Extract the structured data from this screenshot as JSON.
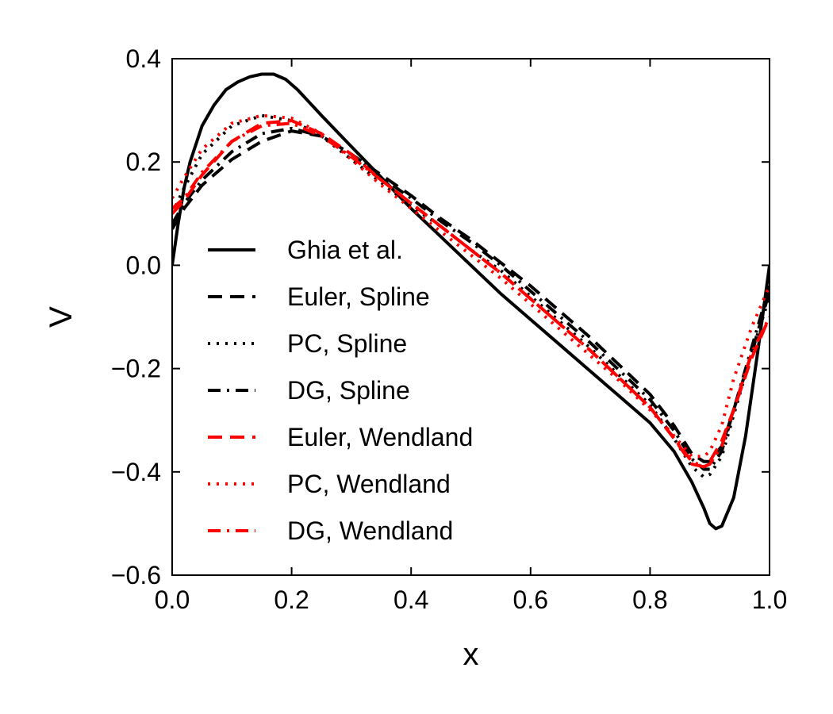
{
  "chart_data": {
    "type": "line",
    "xlabel": "x",
    "ylabel": "V",
    "xlim": [
      0.0,
      1.0
    ],
    "ylim": [
      -0.6,
      0.4
    ],
    "xticks": [
      0.0,
      0.2,
      0.4,
      0.6,
      0.8,
      1.0
    ],
    "xtick_labels": [
      "0.0",
      "0.2",
      "0.4",
      "0.6",
      "0.8",
      "1.0"
    ],
    "yticks": [
      -0.6,
      -0.4,
      -0.2,
      0.0,
      0.2,
      0.4
    ],
    "ytick_labels": [
      "−0.6",
      "−0.4",
      "−0.2",
      "0.0",
      "0.2",
      "0.4"
    ],
    "grid": false,
    "legend_position": "center-left",
    "series": [
      {
        "name": "Ghia et al.",
        "color": "#000000",
        "style": "solid",
        "x": [
          0.0,
          0.01,
          0.02,
          0.03,
          0.05,
          0.07,
          0.09,
          0.11,
          0.13,
          0.15,
          0.17,
          0.19,
          0.21,
          0.25,
          0.3,
          0.35,
          0.4,
          0.45,
          0.5,
          0.55,
          0.6,
          0.65,
          0.7,
          0.75,
          0.8,
          0.84,
          0.87,
          0.89,
          0.9,
          0.91,
          0.92,
          0.94,
          0.96,
          0.98,
          1.0
        ],
        "y": [
          0.0,
          0.08,
          0.15,
          0.2,
          0.27,
          0.31,
          0.34,
          0.355,
          0.365,
          0.37,
          0.37,
          0.36,
          0.34,
          0.29,
          0.23,
          0.17,
          0.11,
          0.055,
          0.0,
          -0.055,
          -0.105,
          -0.155,
          -0.205,
          -0.255,
          -0.305,
          -0.36,
          -0.42,
          -0.47,
          -0.5,
          -0.51,
          -0.505,
          -0.45,
          -0.33,
          -0.17,
          0.0
        ]
      },
      {
        "name": "Euler, Spline",
        "color": "#000000",
        "style": "dashed",
        "x": [
          0.0,
          0.02,
          0.05,
          0.1,
          0.15,
          0.2,
          0.25,
          0.3,
          0.35,
          0.4,
          0.45,
          0.5,
          0.55,
          0.6,
          0.65,
          0.7,
          0.75,
          0.8,
          0.84,
          0.87,
          0.89,
          0.9,
          0.92,
          0.94,
          0.97,
          1.0
        ],
        "y": [
          0.07,
          0.11,
          0.155,
          0.205,
          0.24,
          0.26,
          0.25,
          0.215,
          0.175,
          0.135,
          0.09,
          0.05,
          0.005,
          -0.04,
          -0.09,
          -0.14,
          -0.195,
          -0.25,
          -0.31,
          -0.365,
          -0.38,
          -0.38,
          -0.35,
          -0.28,
          -0.17,
          -0.05
        ]
      },
      {
        "name": "PC, Spline",
        "color": "#000000",
        "style": "dotted",
        "x": [
          0.0,
          0.02,
          0.05,
          0.1,
          0.15,
          0.2,
          0.25,
          0.3,
          0.35,
          0.4,
          0.45,
          0.5,
          0.55,
          0.6,
          0.65,
          0.7,
          0.75,
          0.8,
          0.84,
          0.87,
          0.89,
          0.9,
          0.92,
          0.94,
          0.97,
          1.0
        ],
        "y": [
          0.1,
          0.15,
          0.215,
          0.27,
          0.29,
          0.28,
          0.25,
          0.205,
          0.16,
          0.115,
          0.075,
          0.03,
          -0.01,
          -0.06,
          -0.11,
          -0.16,
          -0.215,
          -0.27,
          -0.335,
          -0.39,
          -0.41,
          -0.405,
          -0.37,
          -0.29,
          -0.17,
          -0.06
        ]
      },
      {
        "name": "DG, Spline",
        "color": "#000000",
        "style": "dashdot",
        "x": [
          0.0,
          0.02,
          0.05,
          0.1,
          0.15,
          0.2,
          0.25,
          0.3,
          0.35,
          0.4,
          0.45,
          0.5,
          0.55,
          0.6,
          0.65,
          0.7,
          0.75,
          0.8,
          0.84,
          0.87,
          0.89,
          0.9,
          0.92,
          0.94,
          0.97,
          1.0
        ],
        "y": [
          0.08,
          0.12,
          0.165,
          0.22,
          0.255,
          0.265,
          0.25,
          0.215,
          0.17,
          0.13,
          0.085,
          0.045,
          0.0,
          -0.05,
          -0.1,
          -0.15,
          -0.205,
          -0.26,
          -0.32,
          -0.375,
          -0.395,
          -0.395,
          -0.36,
          -0.28,
          -0.16,
          -0.04
        ]
      },
      {
        "name": "Euler, Wendland",
        "color": "#ff0000",
        "style": "dashed",
        "x": [
          0.0,
          0.02,
          0.05,
          0.1,
          0.15,
          0.2,
          0.25,
          0.3,
          0.35,
          0.4,
          0.45,
          0.5,
          0.55,
          0.6,
          0.65,
          0.7,
          0.75,
          0.8,
          0.84,
          0.87,
          0.89,
          0.9,
          0.92,
          0.94,
          0.97,
          1.0
        ],
        "y": [
          0.1,
          0.125,
          0.175,
          0.24,
          0.275,
          0.28,
          0.255,
          0.215,
          0.165,
          0.12,
          0.075,
          0.03,
          -0.015,
          -0.065,
          -0.115,
          -0.165,
          -0.22,
          -0.275,
          -0.335,
          -0.385,
          -0.39,
          -0.38,
          -0.34,
          -0.28,
          -0.18,
          -0.1
        ]
      },
      {
        "name": "PC, Wendland",
        "color": "#ff0000",
        "style": "dotted",
        "x": [
          0.0,
          0.02,
          0.05,
          0.1,
          0.15,
          0.2,
          0.25,
          0.3,
          0.35,
          0.4,
          0.45,
          0.5,
          0.55,
          0.6,
          0.65,
          0.7,
          0.75,
          0.8,
          0.84,
          0.87,
          0.89,
          0.9,
          0.92,
          0.94,
          0.97,
          1.0
        ],
        "y": [
          0.13,
          0.17,
          0.225,
          0.275,
          0.29,
          0.285,
          0.255,
          0.205,
          0.155,
          0.11,
          0.065,
          0.02,
          -0.025,
          -0.075,
          -0.125,
          -0.175,
          -0.225,
          -0.28,
          -0.33,
          -0.37,
          -0.37,
          -0.36,
          -0.31,
          -0.22,
          -0.12,
          -0.04
        ]
      },
      {
        "name": "DG, Wendland",
        "color": "#ff0000",
        "style": "dashdot",
        "x": [
          0.0,
          0.02,
          0.05,
          0.1,
          0.15,
          0.2,
          0.25,
          0.3,
          0.35,
          0.4,
          0.45,
          0.5,
          0.55,
          0.6,
          0.65,
          0.7,
          0.75,
          0.8,
          0.84,
          0.87,
          0.89,
          0.9,
          0.92,
          0.94,
          0.97,
          1.0
        ],
        "y": [
          0.11,
          0.13,
          0.18,
          0.24,
          0.27,
          0.275,
          0.25,
          0.21,
          0.165,
          0.12,
          0.075,
          0.03,
          -0.015,
          -0.065,
          -0.115,
          -0.165,
          -0.22,
          -0.275,
          -0.335,
          -0.38,
          -0.39,
          -0.385,
          -0.35,
          -0.28,
          -0.17,
          -0.1
        ]
      }
    ]
  }
}
